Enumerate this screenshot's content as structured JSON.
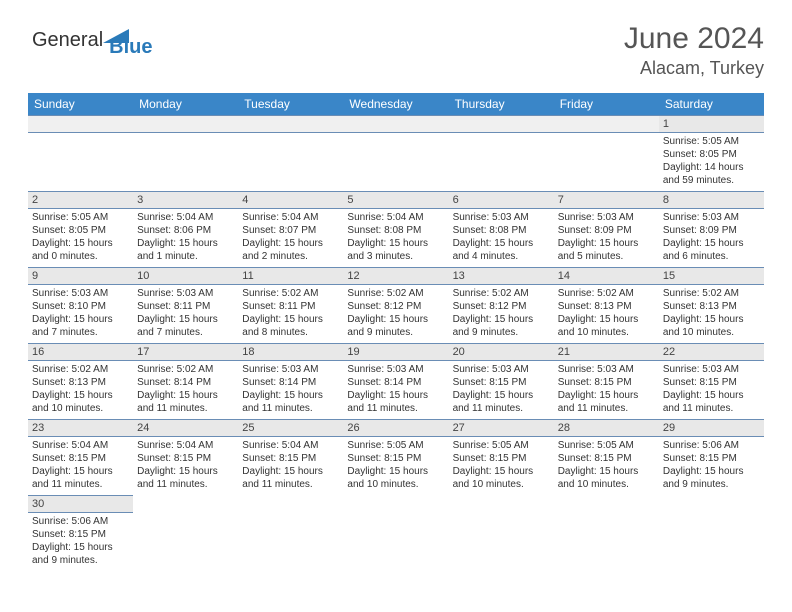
{
  "header": {
    "logo_general": "General",
    "logo_blue": "Blue",
    "month_title": "June 2024",
    "location": "Alacam, Turkey"
  },
  "calendar": {
    "header_bg": "#3a86c8",
    "header_fg": "#ffffff",
    "daynum_bg": "#e8e8e8",
    "border_color": "#6a8db5",
    "text_color": "#333333",
    "days_of_week": [
      "Sunday",
      "Monday",
      "Tuesday",
      "Wednesday",
      "Thursday",
      "Friday",
      "Saturday"
    ],
    "leading_blanks": 6,
    "days": [
      {
        "n": 1,
        "sunrise": "5:05 AM",
        "sunset": "8:05 PM",
        "daylight": "14 hours and 59 minutes."
      },
      {
        "n": 2,
        "sunrise": "5:05 AM",
        "sunset": "8:05 PM",
        "daylight": "15 hours and 0 minutes."
      },
      {
        "n": 3,
        "sunrise": "5:04 AM",
        "sunset": "8:06 PM",
        "daylight": "15 hours and 1 minute."
      },
      {
        "n": 4,
        "sunrise": "5:04 AM",
        "sunset": "8:07 PM",
        "daylight": "15 hours and 2 minutes."
      },
      {
        "n": 5,
        "sunrise": "5:04 AM",
        "sunset": "8:08 PM",
        "daylight": "15 hours and 3 minutes."
      },
      {
        "n": 6,
        "sunrise": "5:03 AM",
        "sunset": "8:08 PM",
        "daylight": "15 hours and 4 minutes."
      },
      {
        "n": 7,
        "sunrise": "5:03 AM",
        "sunset": "8:09 PM",
        "daylight": "15 hours and 5 minutes."
      },
      {
        "n": 8,
        "sunrise": "5:03 AM",
        "sunset": "8:09 PM",
        "daylight": "15 hours and 6 minutes."
      },
      {
        "n": 9,
        "sunrise": "5:03 AM",
        "sunset": "8:10 PM",
        "daylight": "15 hours and 7 minutes."
      },
      {
        "n": 10,
        "sunrise": "5:03 AM",
        "sunset": "8:11 PM",
        "daylight": "15 hours and 7 minutes."
      },
      {
        "n": 11,
        "sunrise": "5:02 AM",
        "sunset": "8:11 PM",
        "daylight": "15 hours and 8 minutes."
      },
      {
        "n": 12,
        "sunrise": "5:02 AM",
        "sunset": "8:12 PM",
        "daylight": "15 hours and 9 minutes."
      },
      {
        "n": 13,
        "sunrise": "5:02 AM",
        "sunset": "8:12 PM",
        "daylight": "15 hours and 9 minutes."
      },
      {
        "n": 14,
        "sunrise": "5:02 AM",
        "sunset": "8:13 PM",
        "daylight": "15 hours and 10 minutes."
      },
      {
        "n": 15,
        "sunrise": "5:02 AM",
        "sunset": "8:13 PM",
        "daylight": "15 hours and 10 minutes."
      },
      {
        "n": 16,
        "sunrise": "5:02 AM",
        "sunset": "8:13 PM",
        "daylight": "15 hours and 10 minutes."
      },
      {
        "n": 17,
        "sunrise": "5:02 AM",
        "sunset": "8:14 PM",
        "daylight": "15 hours and 11 minutes."
      },
      {
        "n": 18,
        "sunrise": "5:03 AM",
        "sunset": "8:14 PM",
        "daylight": "15 hours and 11 minutes."
      },
      {
        "n": 19,
        "sunrise": "5:03 AM",
        "sunset": "8:14 PM",
        "daylight": "15 hours and 11 minutes."
      },
      {
        "n": 20,
        "sunrise": "5:03 AM",
        "sunset": "8:15 PM",
        "daylight": "15 hours and 11 minutes."
      },
      {
        "n": 21,
        "sunrise": "5:03 AM",
        "sunset": "8:15 PM",
        "daylight": "15 hours and 11 minutes."
      },
      {
        "n": 22,
        "sunrise": "5:03 AM",
        "sunset": "8:15 PM",
        "daylight": "15 hours and 11 minutes."
      },
      {
        "n": 23,
        "sunrise": "5:04 AM",
        "sunset": "8:15 PM",
        "daylight": "15 hours and 11 minutes."
      },
      {
        "n": 24,
        "sunrise": "5:04 AM",
        "sunset": "8:15 PM",
        "daylight": "15 hours and 11 minutes."
      },
      {
        "n": 25,
        "sunrise": "5:04 AM",
        "sunset": "8:15 PM",
        "daylight": "15 hours and 11 minutes."
      },
      {
        "n": 26,
        "sunrise": "5:05 AM",
        "sunset": "8:15 PM",
        "daylight": "15 hours and 10 minutes."
      },
      {
        "n": 27,
        "sunrise": "5:05 AM",
        "sunset": "8:15 PM",
        "daylight": "15 hours and 10 minutes."
      },
      {
        "n": 28,
        "sunrise": "5:05 AM",
        "sunset": "8:15 PM",
        "daylight": "15 hours and 10 minutes."
      },
      {
        "n": 29,
        "sunrise": "5:06 AM",
        "sunset": "8:15 PM",
        "daylight": "15 hours and 9 minutes."
      },
      {
        "n": 30,
        "sunrise": "5:06 AM",
        "sunset": "8:15 PM",
        "daylight": "15 hours and 9 minutes."
      }
    ],
    "labels": {
      "sunrise": "Sunrise:",
      "sunset": "Sunset:",
      "daylight": "Daylight:"
    }
  }
}
